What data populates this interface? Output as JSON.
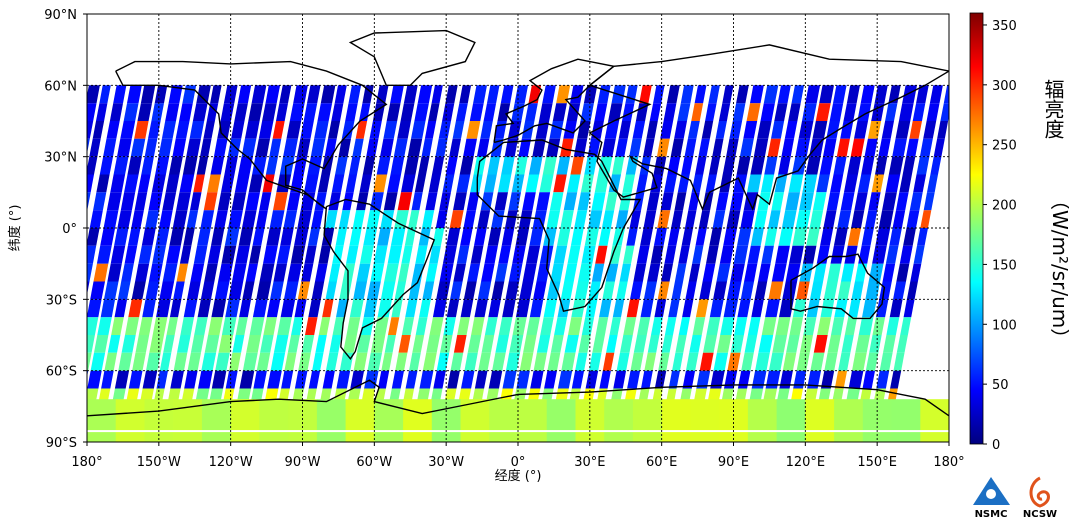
{
  "chart_data": {
    "type": "heatmap",
    "title": "",
    "xlabel": "经度 (°)",
    "ylabel": "纬度 (°)",
    "xlim": [
      -180,
      180
    ],
    "ylim": [
      -90,
      90
    ],
    "x_ticks": [
      -180,
      -150,
      -120,
      -90,
      -60,
      -30,
      0,
      30,
      60,
      90,
      120,
      150,
      180
    ],
    "x_tick_labels": [
      "180°",
      "150°W",
      "120°W",
      "90°W",
      "60°W",
      "30°W",
      "0°",
      "30°E",
      "60°E",
      "90°E",
      "120°E",
      "150°E",
      "180°"
    ],
    "y_ticks": [
      90,
      60,
      30,
      0,
      -30,
      -60,
      -90
    ],
    "y_tick_labels": [
      "90°N",
      "60°N",
      "30°N",
      "0°",
      "30°S",
      "60°S",
      "90°S"
    ],
    "grid": true,
    "data_lat_max": 60,
    "colorbar": {
      "label_vertical": "辐亮度",
      "label_rotated": "（W/m²/sr/um）",
      "range": [
        0,
        360
      ],
      "ticks": [
        0,
        50,
        100,
        150,
        200,
        250,
        300,
        350
      ],
      "colormap": "jet"
    },
    "typical_values": {
      "ocean_tropics": 40,
      "southern_ocean_40_60S": 160,
      "antarctic_ice": 200,
      "land_tropics": 130,
      "sun_glint_max": 320
    }
  },
  "logos": {
    "nsmc": "NSMC",
    "ncsw": "NCSW",
    "nsmc_color": "#1b6fc4",
    "ncsw_color": "#e0531c"
  }
}
